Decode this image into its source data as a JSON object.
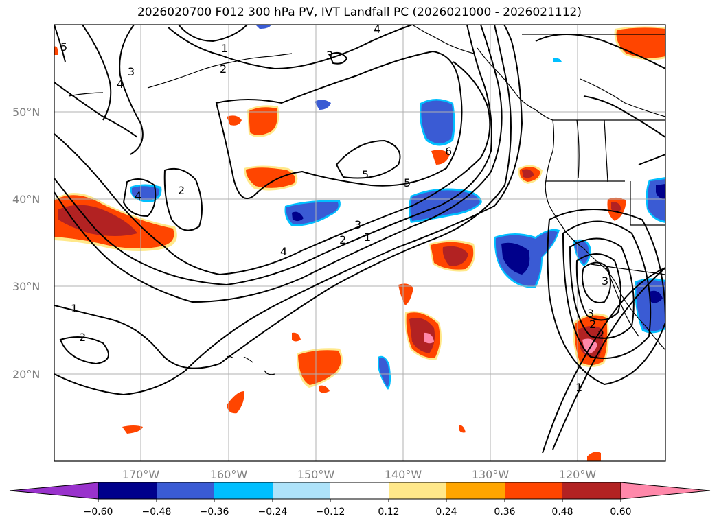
{
  "title": "2026020700 F012 300 hPa PV, IVT Landfall PC (2026021000 - 2026021112)",
  "lat_labels": [
    "50°N",
    "40°N",
    "30°N",
    "20°N"
  ],
  "lon_labels": [
    "170°W",
    "160°W",
    "150°W",
    "140°W",
    "130°W",
    "120°W"
  ],
  "contour_labels": [
    "5",
    "1",
    "2",
    "3",
    "4",
    "4",
    "3",
    "4",
    "2",
    "2",
    "5",
    "5",
    "6",
    "3",
    "2",
    "1",
    "4",
    "1",
    "2",
    "3",
    "2",
    "1",
    "3"
  ],
  "colorbar": {
    "ticks": [
      "−0.60",
      "−0.48",
      "−0.36",
      "−0.24",
      "−0.12",
      "0.12",
      "0.24",
      "0.36",
      "0.48",
      "0.60"
    ],
    "under_color": "#9932cc",
    "over_color": "#ff88aa",
    "colors": [
      "#00008b",
      "#3a5bd4",
      "#00bfff",
      "#aee3fa",
      "#ffffff",
      "#ffe88a",
      "#ffa500",
      "#ff4500",
      "#b22222"
    ]
  },
  "colors": {
    "neg_dark": "#00008b",
    "neg_mid": "#3a5bd4",
    "neg_light": "#00bfff",
    "neg_pale": "#aee3fa",
    "pos_pale": "#ffe88a",
    "pos_light": "#ffa500",
    "pos_mid": "#ff4500",
    "pos_dark": "#b22222",
    "pos_max": "#ff88aa"
  }
}
